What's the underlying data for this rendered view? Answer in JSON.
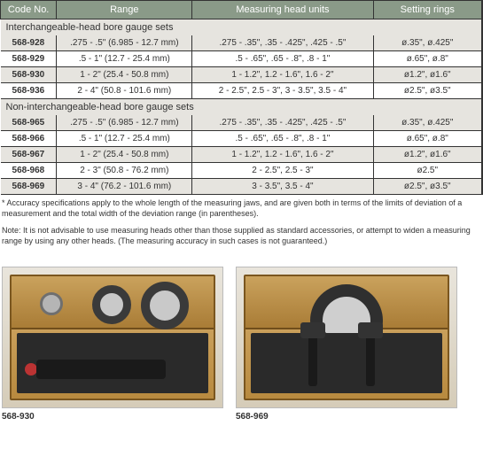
{
  "table": {
    "headers": {
      "code": "Code No.",
      "range": "Range",
      "heads": "Measuring head units",
      "rings": "Setting rings"
    },
    "section1": "Interchangeable-head bore gauge sets",
    "section2": "Non-interchangeable-head bore gauge sets",
    "rows1": [
      {
        "code": "568-928",
        "range": ".275 - .5\" (6.985 - 12.7 mm)",
        "heads": ".275 - .35\", .35 - .425\", .425 - .5\"",
        "rings": "ø.35\", ø.425\""
      },
      {
        "code": "568-929",
        "range": ".5 - 1\" (12.7 - 25.4 mm)",
        "heads": ".5 - .65\", .65 - .8\", .8 - 1\"",
        "rings": "ø.65\", ø.8\""
      },
      {
        "code": "568-930",
        "range": "1 - 2\" (25.4 - 50.8 mm)",
        "heads": "1 - 1.2\", 1.2 - 1.6\", 1.6 - 2\"",
        "rings": "ø1.2\", ø1.6\""
      },
      {
        "code": "568-936",
        "range": "2 - 4\" (50.8 - 101.6 mm)",
        "heads": "2 - 2.5\", 2.5 - 3\", 3 - 3.5\", 3.5 - 4\"",
        "rings": "ø2.5\", ø3.5\""
      }
    ],
    "rows2": [
      {
        "code": "568-965",
        "range": ".275 - .5\" (6.985 - 12.7 mm)",
        "heads": ".275 - .35\", .35 - .425\", .425 - .5\"",
        "rings": "ø.35\", ø.425\""
      },
      {
        "code": "568-966",
        "range": ".5 - 1\" (12.7 - 25.4 mm)",
        "heads": ".5 - .65\", .65 - .8\", .8 - 1\"",
        "rings": "ø.65\", ø.8\""
      },
      {
        "code": "568-967",
        "range": "1 - 2\" (25.4 - 50.8 mm)",
        "heads": "1 - 1.2\", 1.2 - 1.6\", 1.6 - 2\"",
        "rings": "ø1.2\", ø1.6\""
      },
      {
        "code": "568-968",
        "range": "2 - 3\" (50.8 - 76.2 mm)",
        "heads": "2 - 2.5\", 2.5 - 3\"",
        "rings": "ø2.5\""
      },
      {
        "code": "568-969",
        "range": "3 - 4\" (76.2 - 101.6 mm)",
        "heads": "3 - 3.5\", 3.5 - 4\"",
        "rings": "ø2.5\", ø3.5\""
      }
    ],
    "footnote1": "* Accuracy specifications apply to the whole length of the measuring jaws, and are given both in terms of the limits of deviation of a measurement and the total width of the deviation range (in parentheses).",
    "footnote2": "Note: It is not advisable to use measuring heads other than those supplied as standard accessories, or attempt to widen a measuring range by using any other heads. (The measuring accuracy in such cases is not guaranteed.)"
  },
  "products": {
    "p1_label": "568-930",
    "p2_label": "568-969"
  },
  "colors": {
    "header_bg": "#8a9a88",
    "section_bg": "#e6e4df",
    "row_alt_bg": "#e6e4df",
    "border": "#333333"
  }
}
